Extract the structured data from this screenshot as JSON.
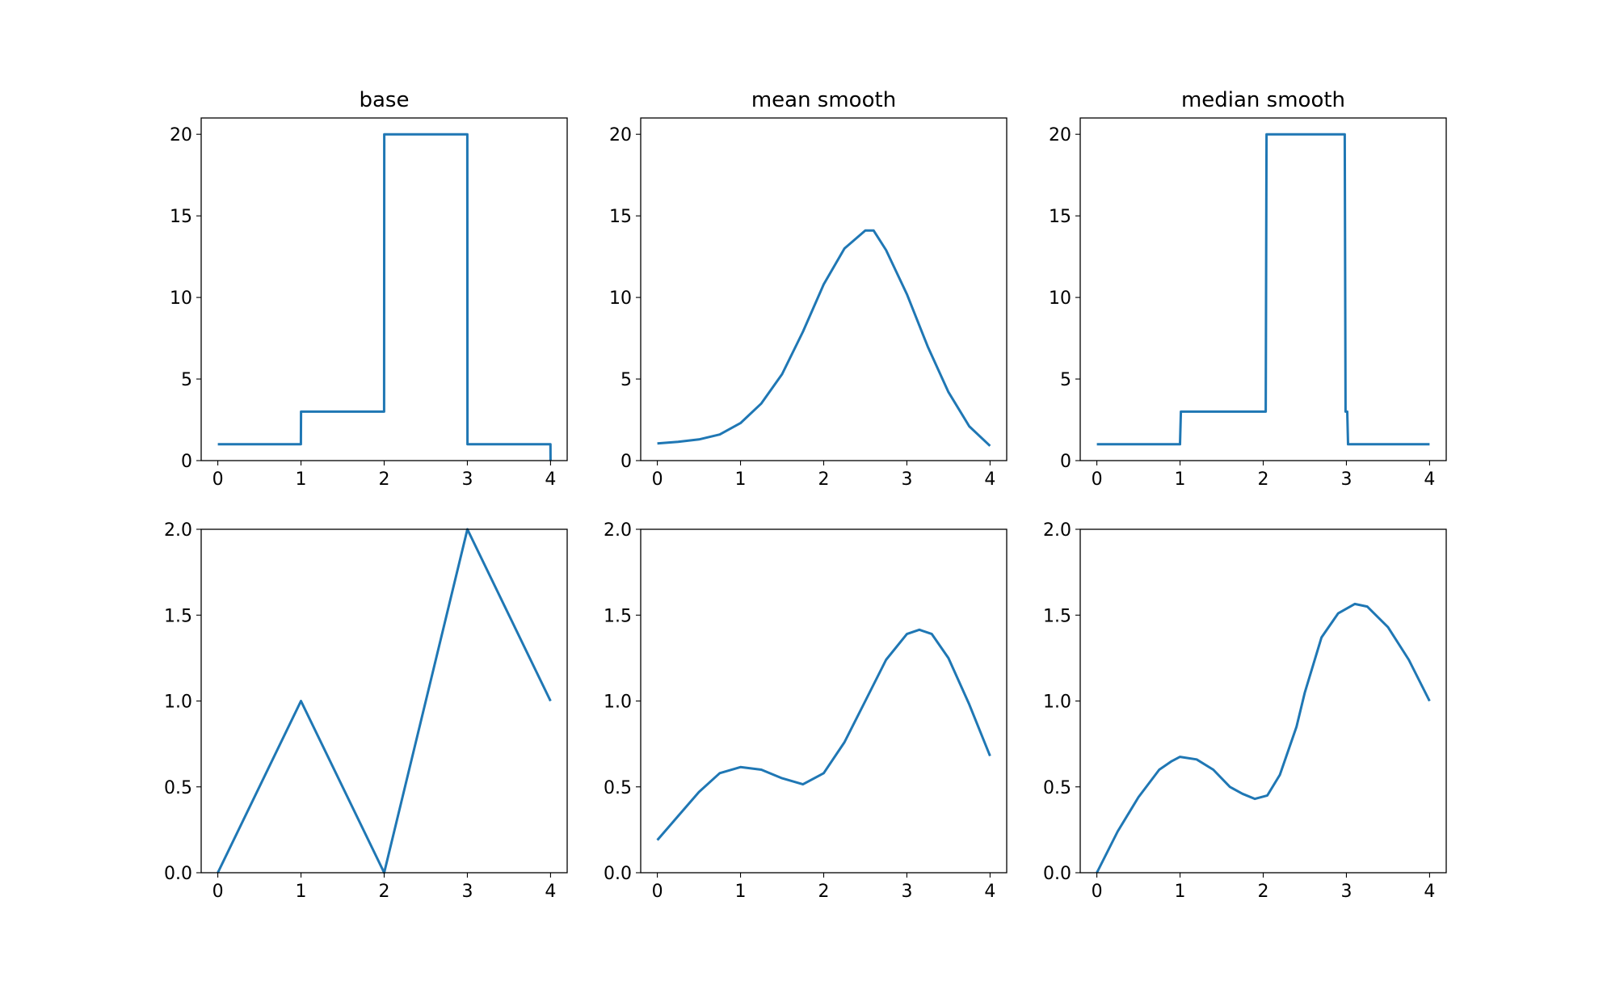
{
  "chart_data": [
    {
      "type": "line",
      "title": "base",
      "xlim": [
        -0.2,
        4.2
      ],
      "ylim": [
        0,
        21
      ],
      "xticks": [
        "0",
        "1",
        "2",
        "3",
        "4"
      ],
      "yticks": [
        "0",
        "5",
        "10",
        "15",
        "20"
      ],
      "color": "#1f77b4",
      "x": [
        0,
        0.999,
        1.001,
        1.999,
        2.001,
        2.999,
        3.001,
        3.999,
        4.0
      ],
      "y": [
        1,
        1,
        3,
        3,
        20,
        20,
        1,
        1,
        0
      ]
    },
    {
      "type": "line",
      "title": "mean smooth",
      "xlim": [
        -0.2,
        4.2
      ],
      "ylim": [
        0,
        21
      ],
      "xticks": [
        "0",
        "1",
        "2",
        "3",
        "4"
      ],
      "yticks": [
        "0",
        "5",
        "10",
        "15",
        "20"
      ],
      "color": "#1f77b4",
      "x": [
        0,
        0.25,
        0.5,
        0.75,
        1,
        1.25,
        1.5,
        1.75,
        2,
        2.25,
        2.5,
        2.6,
        2.75,
        3,
        3.25,
        3.5,
        3.75,
        4
      ],
      "y": [
        1.05,
        1.15,
        1.3,
        1.6,
        2.3,
        3.5,
        5.3,
        7.9,
        10.8,
        13.0,
        14.1,
        14.1,
        12.9,
        10.2,
        7.0,
        4.2,
        2.1,
        0.9
      ]
    },
    {
      "type": "line",
      "title": "median smooth",
      "xlim": [
        -0.2,
        4.2
      ],
      "ylim": [
        0,
        21
      ],
      "xticks": [
        "0",
        "1",
        "2",
        "3",
        "4"
      ],
      "yticks": [
        "0",
        "5",
        "10",
        "15",
        "20"
      ],
      "color": "#1f77b4",
      "x": [
        0,
        1.0,
        1.01,
        2.03,
        2.04,
        2.98,
        2.99,
        3.01,
        3.02,
        4
      ],
      "y": [
        1,
        1,
        3,
        3,
        20,
        20,
        3,
        3,
        1,
        1
      ]
    },
    {
      "type": "line",
      "title": "",
      "xlim": [
        -0.2,
        4.2
      ],
      "ylim": [
        0,
        2
      ],
      "xticks": [
        "0",
        "1",
        "2",
        "3",
        "4"
      ],
      "yticks": [
        "0.0",
        "0.5",
        "1.0",
        "1.5",
        "2.0"
      ],
      "color": "#1f77b4",
      "x": [
        0,
        1,
        2,
        3,
        4
      ],
      "y": [
        0,
        1,
        0,
        2,
        1
      ]
    },
    {
      "type": "line",
      "title": "",
      "xlim": [
        -0.2,
        4.2
      ],
      "ylim": [
        0,
        2
      ],
      "xticks": [
        "0",
        "1",
        "2",
        "3",
        "4"
      ],
      "yticks": [
        "0.0",
        "0.5",
        "1.0",
        "1.5",
        "2.0"
      ],
      "color": "#1f77b4",
      "x": [
        0,
        0.25,
        0.5,
        0.75,
        1,
        1.25,
        1.5,
        1.75,
        2,
        2.25,
        2.5,
        2.75,
        3,
        3.15,
        3.3,
        3.5,
        3.75,
        4
      ],
      "y": [
        0.19,
        0.33,
        0.47,
        0.58,
        0.615,
        0.6,
        0.55,
        0.515,
        0.58,
        0.76,
        1.0,
        1.24,
        1.39,
        1.415,
        1.39,
        1.25,
        0.98,
        0.68
      ]
    },
    {
      "type": "line",
      "title": "",
      "xlim": [
        -0.2,
        4.2
      ],
      "ylim": [
        0,
        2
      ],
      "xticks": [
        "0",
        "1",
        "2",
        "3",
        "4"
      ],
      "yticks": [
        "0.0",
        "0.5",
        "1.0",
        "1.5",
        "2.0"
      ],
      "color": "#1f77b4",
      "x": [
        0,
        0.25,
        0.5,
        0.75,
        0.9,
        1,
        1.2,
        1.4,
        1.6,
        1.75,
        1.9,
        2.05,
        2.2,
        2.4,
        2.5,
        2.7,
        2.9,
        3.1,
        3.25,
        3.5,
        3.75,
        4
      ],
      "y": [
        0,
        0.24,
        0.44,
        0.6,
        0.65,
        0.675,
        0.66,
        0.6,
        0.5,
        0.46,
        0.43,
        0.45,
        0.57,
        0.85,
        1.05,
        1.37,
        1.51,
        1.565,
        1.55,
        1.43,
        1.24,
        1.0
      ]
    }
  ]
}
